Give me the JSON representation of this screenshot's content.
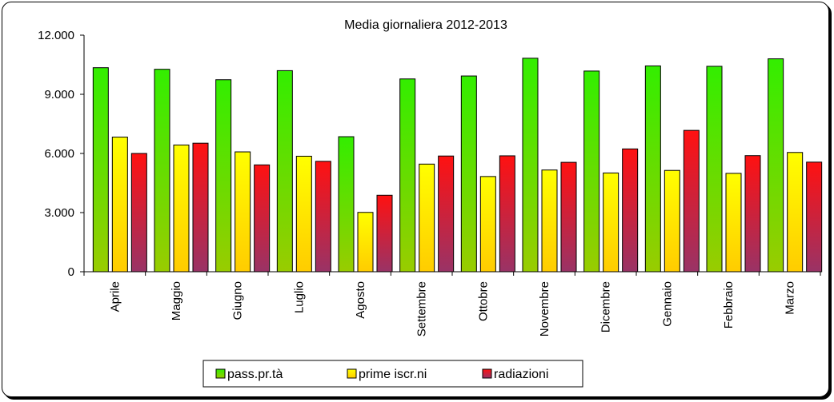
{
  "chart_data": {
    "type": "bar",
    "title": "Media giornaliera 2012-2013",
    "xlabel": "",
    "ylabel": "",
    "ylim": [
      0,
      12000
    ],
    "yticks": [
      "0",
      "3.000",
      "6.000",
      "9.000",
      "12.000"
    ],
    "yticks_values": [
      0,
      3000,
      6000,
      9000,
      12000
    ],
    "grid": false,
    "legend_position": "bottom",
    "categories": [
      "Aprile",
      "Maggio",
      "Giugno",
      "Luglio",
      "Agosto",
      "Settembre",
      "Ottobre",
      "Novembre",
      "Dicembre",
      "Gennaio",
      "Febbraio",
      "Marzo"
    ],
    "series": [
      {
        "name": "pass.pr.tà",
        "values": [
          10350,
          10270,
          9740,
          10200,
          6850,
          9780,
          9930,
          10830,
          10180,
          10440,
          10420,
          10800
        ],
        "color_top": "#33ee00",
        "color_bottom": "#99cc00"
      },
      {
        "name": "prime iscr.ni",
        "values": [
          6830,
          6430,
          6080,
          5860,
          3010,
          5460,
          4830,
          5160,
          5010,
          5140,
          4990,
          6050
        ],
        "color_top": "#ffff00",
        "color_bottom": "#ffcc00"
      },
      {
        "name": "radiazioni",
        "values": [
          6000,
          6520,
          5420,
          5600,
          3880,
          5870,
          5880,
          5550,
          6230,
          7170,
          5890,
          5560
        ],
        "color_top": "#ff1111",
        "color_bottom": "#993366"
      }
    ]
  }
}
